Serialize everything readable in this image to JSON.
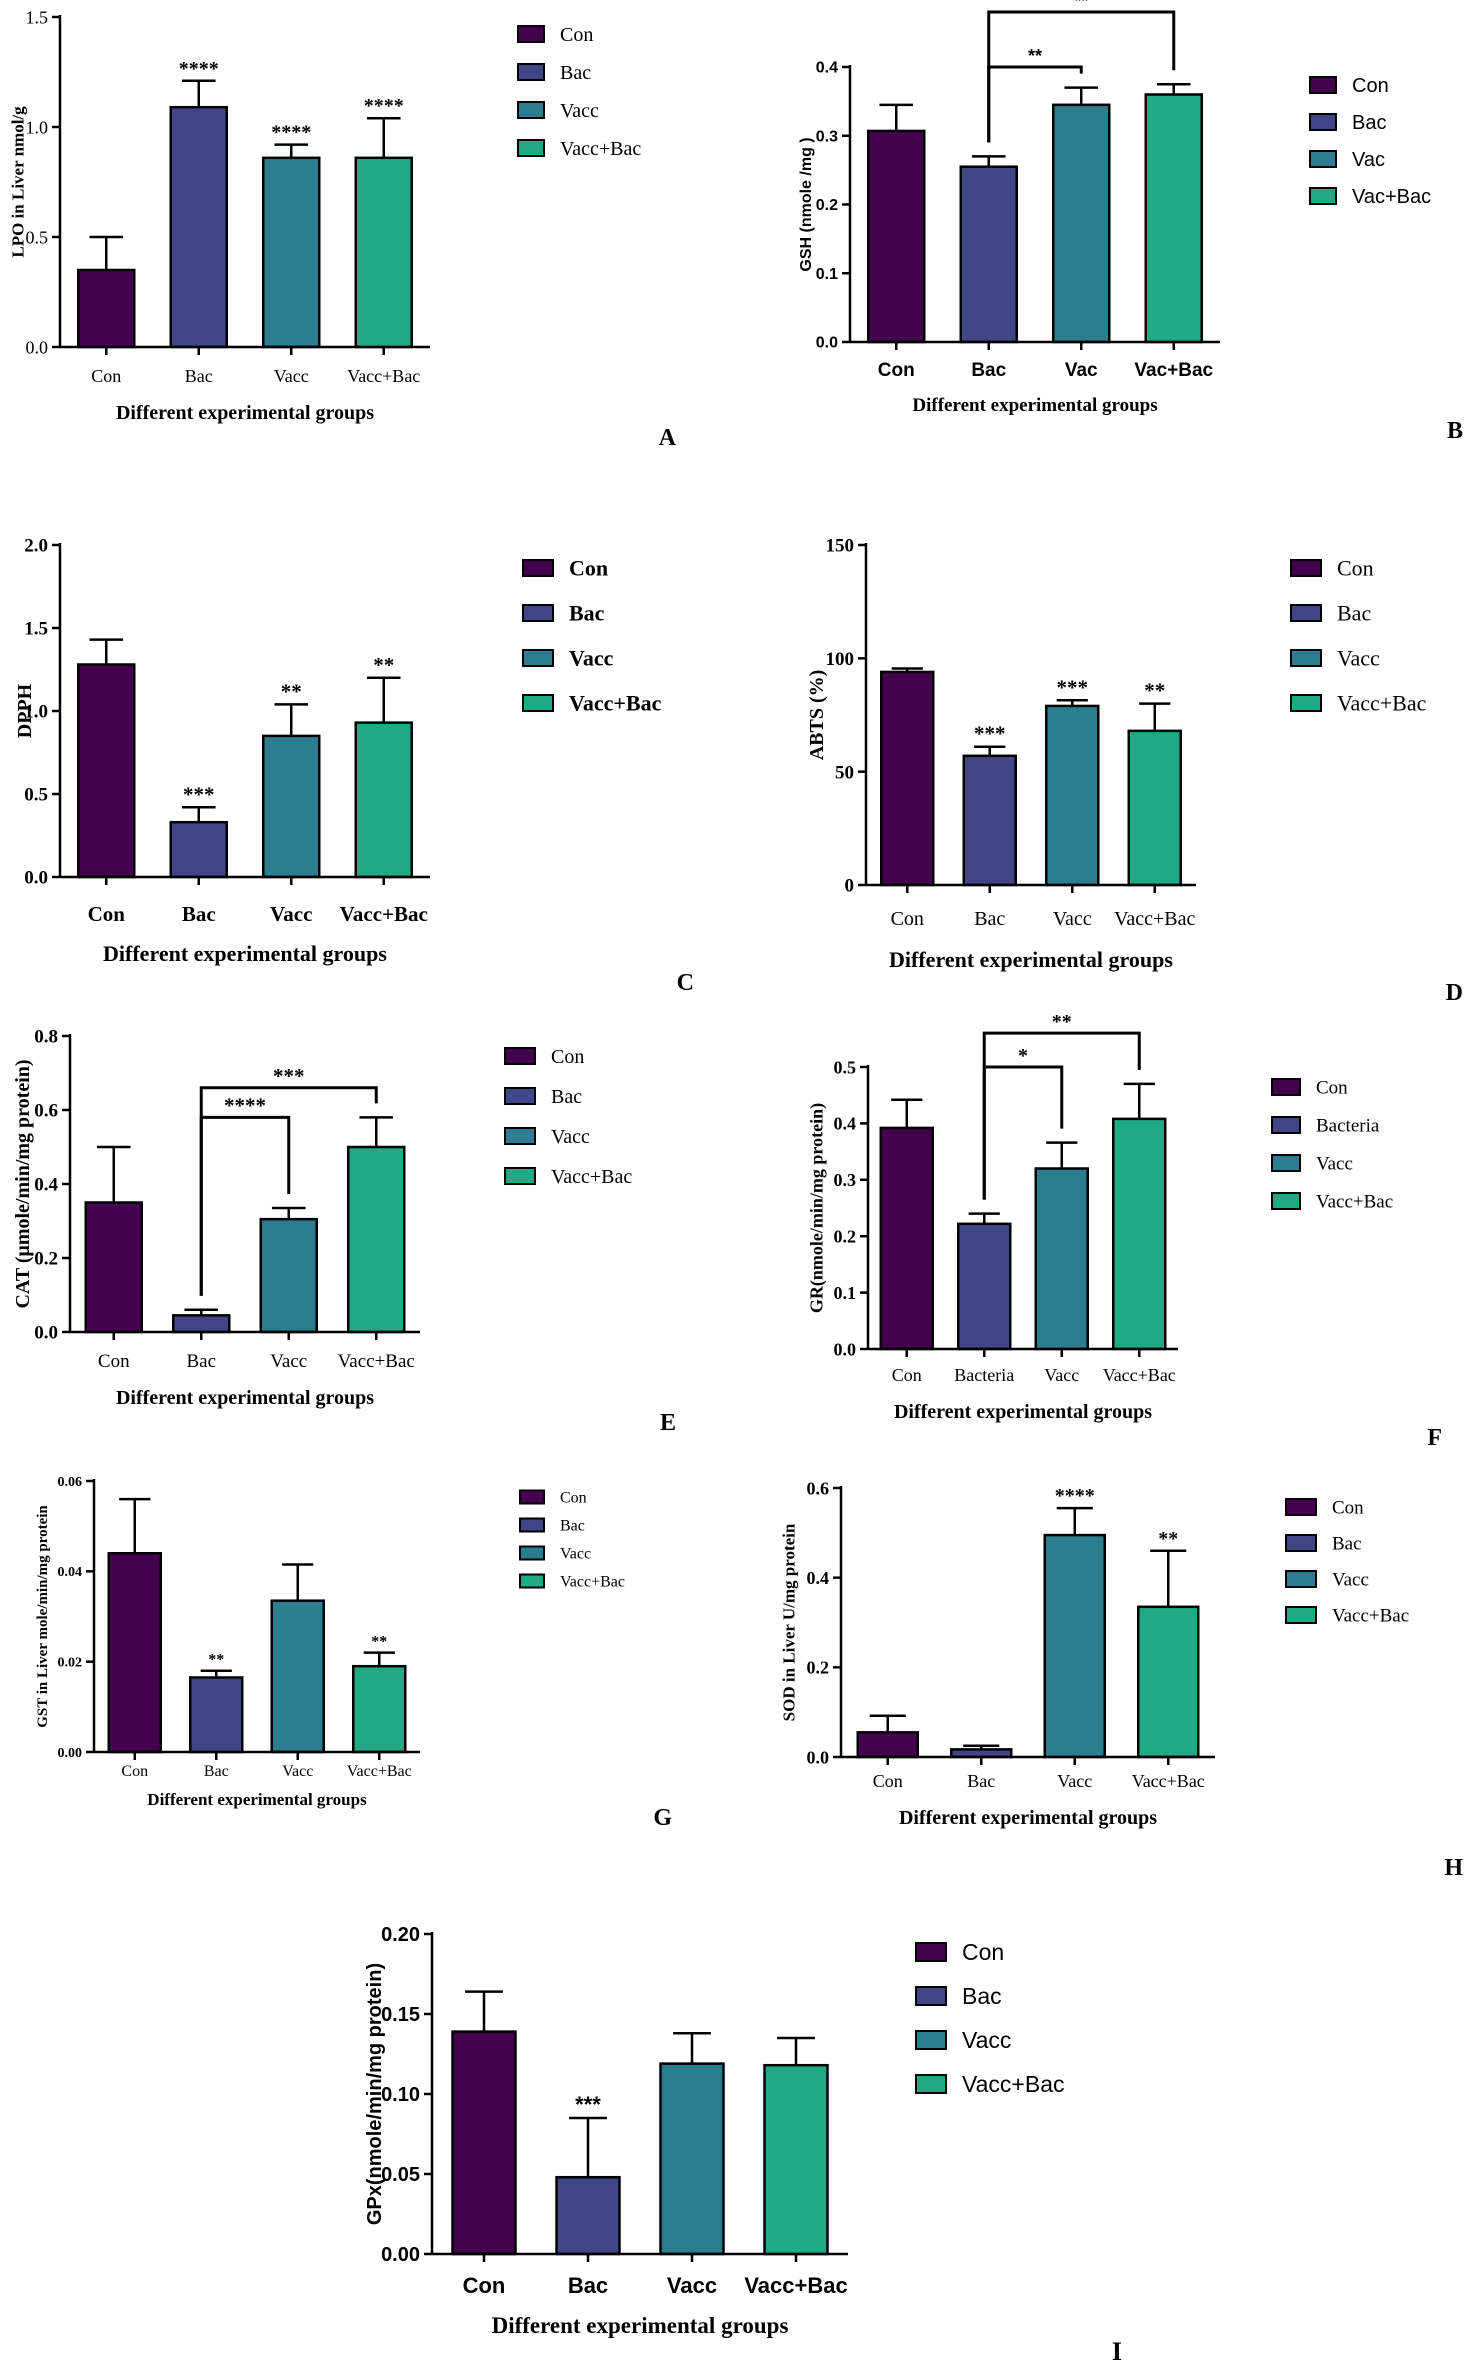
{
  "colors": {
    "con": "#44004f",
    "bac": "#404586",
    "vacc": "#2b7d8f",
    "vaccbac": "#20a985",
    "axis": "#000000"
  },
  "chart_data": [
    {
      "id": "A",
      "type": "bar",
      "panel_letter": "A",
      "categories": [
        "Con",
        "Bac",
        "Vacc",
        "Vacc+Bac"
      ],
      "values": [
        0.35,
        1.09,
        0.86,
        0.86
      ],
      "errors": [
        0.15,
        0.12,
        0.06,
        0.18
      ],
      "significance": [
        "",
        "****",
        "****",
        "****"
      ],
      "legend": [
        "Con",
        "Bac",
        "Vacc",
        "Vacc+Bac"
      ],
      "ylabel": "LPO in Liver  nmol/g",
      "xlabel": "Different experimental groups",
      "ylim": [
        0,
        1.5
      ],
      "yticks": [
        "0.0",
        "0.5",
        "1.0",
        "1.5"
      ],
      "brackets": []
    },
    {
      "id": "B",
      "type": "bar",
      "panel_letter": "B",
      "categories": [
        "Con",
        "Bac",
        "Vac",
        "Vac+Bac"
      ],
      "values": [
        0.307,
        0.255,
        0.345,
        0.36
      ],
      "errors": [
        0.038,
        0.015,
        0.025,
        0.015
      ],
      "significance": [
        "",
        "",
        "",
        ""
      ],
      "legend": [
        "Con",
        "Bac",
        "Vac",
        "Vac+Bac"
      ],
      "ylabel": "GSH (nmole /mg )",
      "xlabel": "Different experimental groups",
      "ylim": [
        0,
        0.4
      ],
      "yticks": [
        "0.0",
        "0.1",
        "0.2",
        "0.3",
        "0.4"
      ],
      "brackets": [
        {
          "from": 1,
          "to": 2,
          "label": "**",
          "level": 0.4
        },
        {
          "from": 1,
          "to": 3,
          "label": "**",
          "level": 0.48
        }
      ]
    },
    {
      "id": "C",
      "type": "bar",
      "panel_letter": "C",
      "categories": [
        "Con",
        "Bac",
        "Vacc",
        "Vacc+Bac"
      ],
      "values": [
        1.28,
        0.33,
        0.85,
        0.93
      ],
      "errors": [
        0.15,
        0.09,
        0.19,
        0.27
      ],
      "significance": [
        "",
        "***",
        "**",
        "**"
      ],
      "legend": [
        "Con",
        "Bac",
        "Vacc",
        "Vacc+Bac"
      ],
      "ylabel": "DPPH",
      "xlabel": "Different experimental groups",
      "ylim": [
        0,
        2.0
      ],
      "yticks": [
        "0.0",
        "0.5",
        "1.0",
        "1.5",
        "2.0"
      ],
      "brackets": []
    },
    {
      "id": "D",
      "type": "bar",
      "panel_letter": "D",
      "categories": [
        "Con",
        "Bac",
        "Vacc",
        "Vacc+Bac"
      ],
      "values": [
        94,
        57,
        79,
        68
      ],
      "errors": [
        1.5,
        4,
        2.5,
        12
      ],
      "significance": [
        "",
        "***",
        "***",
        "**"
      ],
      "legend": [
        "Con",
        "Bac",
        "Vacc",
        "Vacc+Bac"
      ],
      "ylabel": "ABTS (%)",
      "xlabel": "Different experimental groups",
      "ylim": [
        0,
        150
      ],
      "yticks": [
        "0",
        "50",
        "100",
        "150"
      ],
      "brackets": []
    },
    {
      "id": "E",
      "type": "bar",
      "panel_letter": "E",
      "categories": [
        "Con",
        "Bac",
        "Vacc",
        "Vacc+Bac"
      ],
      "values": [
        0.35,
        0.045,
        0.305,
        0.5
      ],
      "errors": [
        0.15,
        0.015,
        0.03,
        0.08
      ],
      "significance": [
        "",
        "",
        "",
        ""
      ],
      "legend": [
        "Con",
        "Bac",
        "Vacc",
        "Vacc+Bac"
      ],
      "ylabel": "CAT (μmole/min/mg protein)",
      "xlabel": "Different experimental groups",
      "ylim": [
        0,
        0.8
      ],
      "yticks": [
        "0.0",
        "0.2",
        "0.4",
        "0.6",
        "0.8"
      ],
      "brackets": [
        {
          "from": 1,
          "to": 2,
          "label": "****",
          "level": 0.58
        },
        {
          "from": 1,
          "to": 3,
          "label": "***",
          "level": 0.66
        }
      ]
    },
    {
      "id": "F",
      "type": "bar",
      "panel_letter": "F",
      "categories": [
        "Con",
        "Bacteria",
        "Vacc",
        "Vacc+Bac"
      ],
      "values": [
        0.392,
        0.222,
        0.32,
        0.408
      ],
      "errors": [
        0.05,
        0.018,
        0.046,
        0.062
      ],
      "significance": [
        "",
        "",
        "",
        ""
      ],
      "legend": [
        "Con",
        "Bacteria",
        "Vacc",
        "Vacc+Bac"
      ],
      "ylabel": "GR(nmole/min/mg protein)",
      "xlabel": "Different experimental groups",
      "ylim": [
        0,
        0.5
      ],
      "yticks": [
        "0.0",
        "0.1",
        "0.2",
        "0.3",
        "0.4",
        "0.5"
      ],
      "brackets": [
        {
          "from": 1,
          "to": 2,
          "label": "*",
          "level": 0.5
        },
        {
          "from": 1,
          "to": 3,
          "label": "**",
          "level": 0.56
        }
      ]
    },
    {
      "id": "G",
      "type": "bar",
      "panel_letter": "G",
      "categories": [
        "Con",
        "Bac",
        "Vacc",
        "Vacc+Bac"
      ],
      "values": [
        0.044,
        0.0165,
        0.0335,
        0.019
      ],
      "errors": [
        0.012,
        0.0015,
        0.008,
        0.003
      ],
      "significance": [
        "",
        "**",
        "",
        "**"
      ],
      "legend": [
        "Con",
        "Bac",
        "Vacc",
        "Vacc+Bac"
      ],
      "ylabel": "GST in Liver mole/min/mg protein",
      "xlabel": "Different experimental groups",
      "ylim": [
        0,
        0.06
      ],
      "yticks": [
        "0.00",
        "0.02",
        "0.04",
        "0.06"
      ],
      "brackets": []
    },
    {
      "id": "H",
      "type": "bar",
      "panel_letter": "H",
      "categories": [
        "Con",
        "Bac",
        "Vacc",
        "Vacc+Bac"
      ],
      "values": [
        0.055,
        0.017,
        0.495,
        0.335
      ],
      "errors": [
        0.037,
        0.008,
        0.06,
        0.125
      ],
      "significance": [
        "",
        "",
        "****",
        "**"
      ],
      "legend": [
        "Con",
        "Bac",
        "Vacc",
        "Vacc+Bac"
      ],
      "ylabel": "SOD in Liver U/mg protein",
      "xlabel": "Different experimental groups",
      "ylim": [
        0,
        0.6
      ],
      "yticks": [
        "0.0",
        "0.2",
        "0.4",
        "0.6"
      ],
      "brackets": []
    },
    {
      "id": "I",
      "type": "bar",
      "panel_letter": "I",
      "categories": [
        "Con",
        "Bac",
        "Vacc",
        "Vacc+Bac"
      ],
      "values": [
        0.139,
        0.048,
        0.119,
        0.118
      ],
      "errors": [
        0.025,
        0.037,
        0.019,
        0.017
      ],
      "significance": [
        "",
        "***",
        "",
        ""
      ],
      "legend": [
        "Con",
        "Bac",
        "Vacc",
        "Vacc+Bac"
      ],
      "ylabel": "GPx(nmole/min/mg protein)",
      "xlabel": "Different experimental groups",
      "ylim": [
        0,
        0.2
      ],
      "yticks": [
        "0.00",
        "0.05",
        "0.10",
        "0.15",
        "0.20"
      ],
      "brackets": []
    }
  ]
}
